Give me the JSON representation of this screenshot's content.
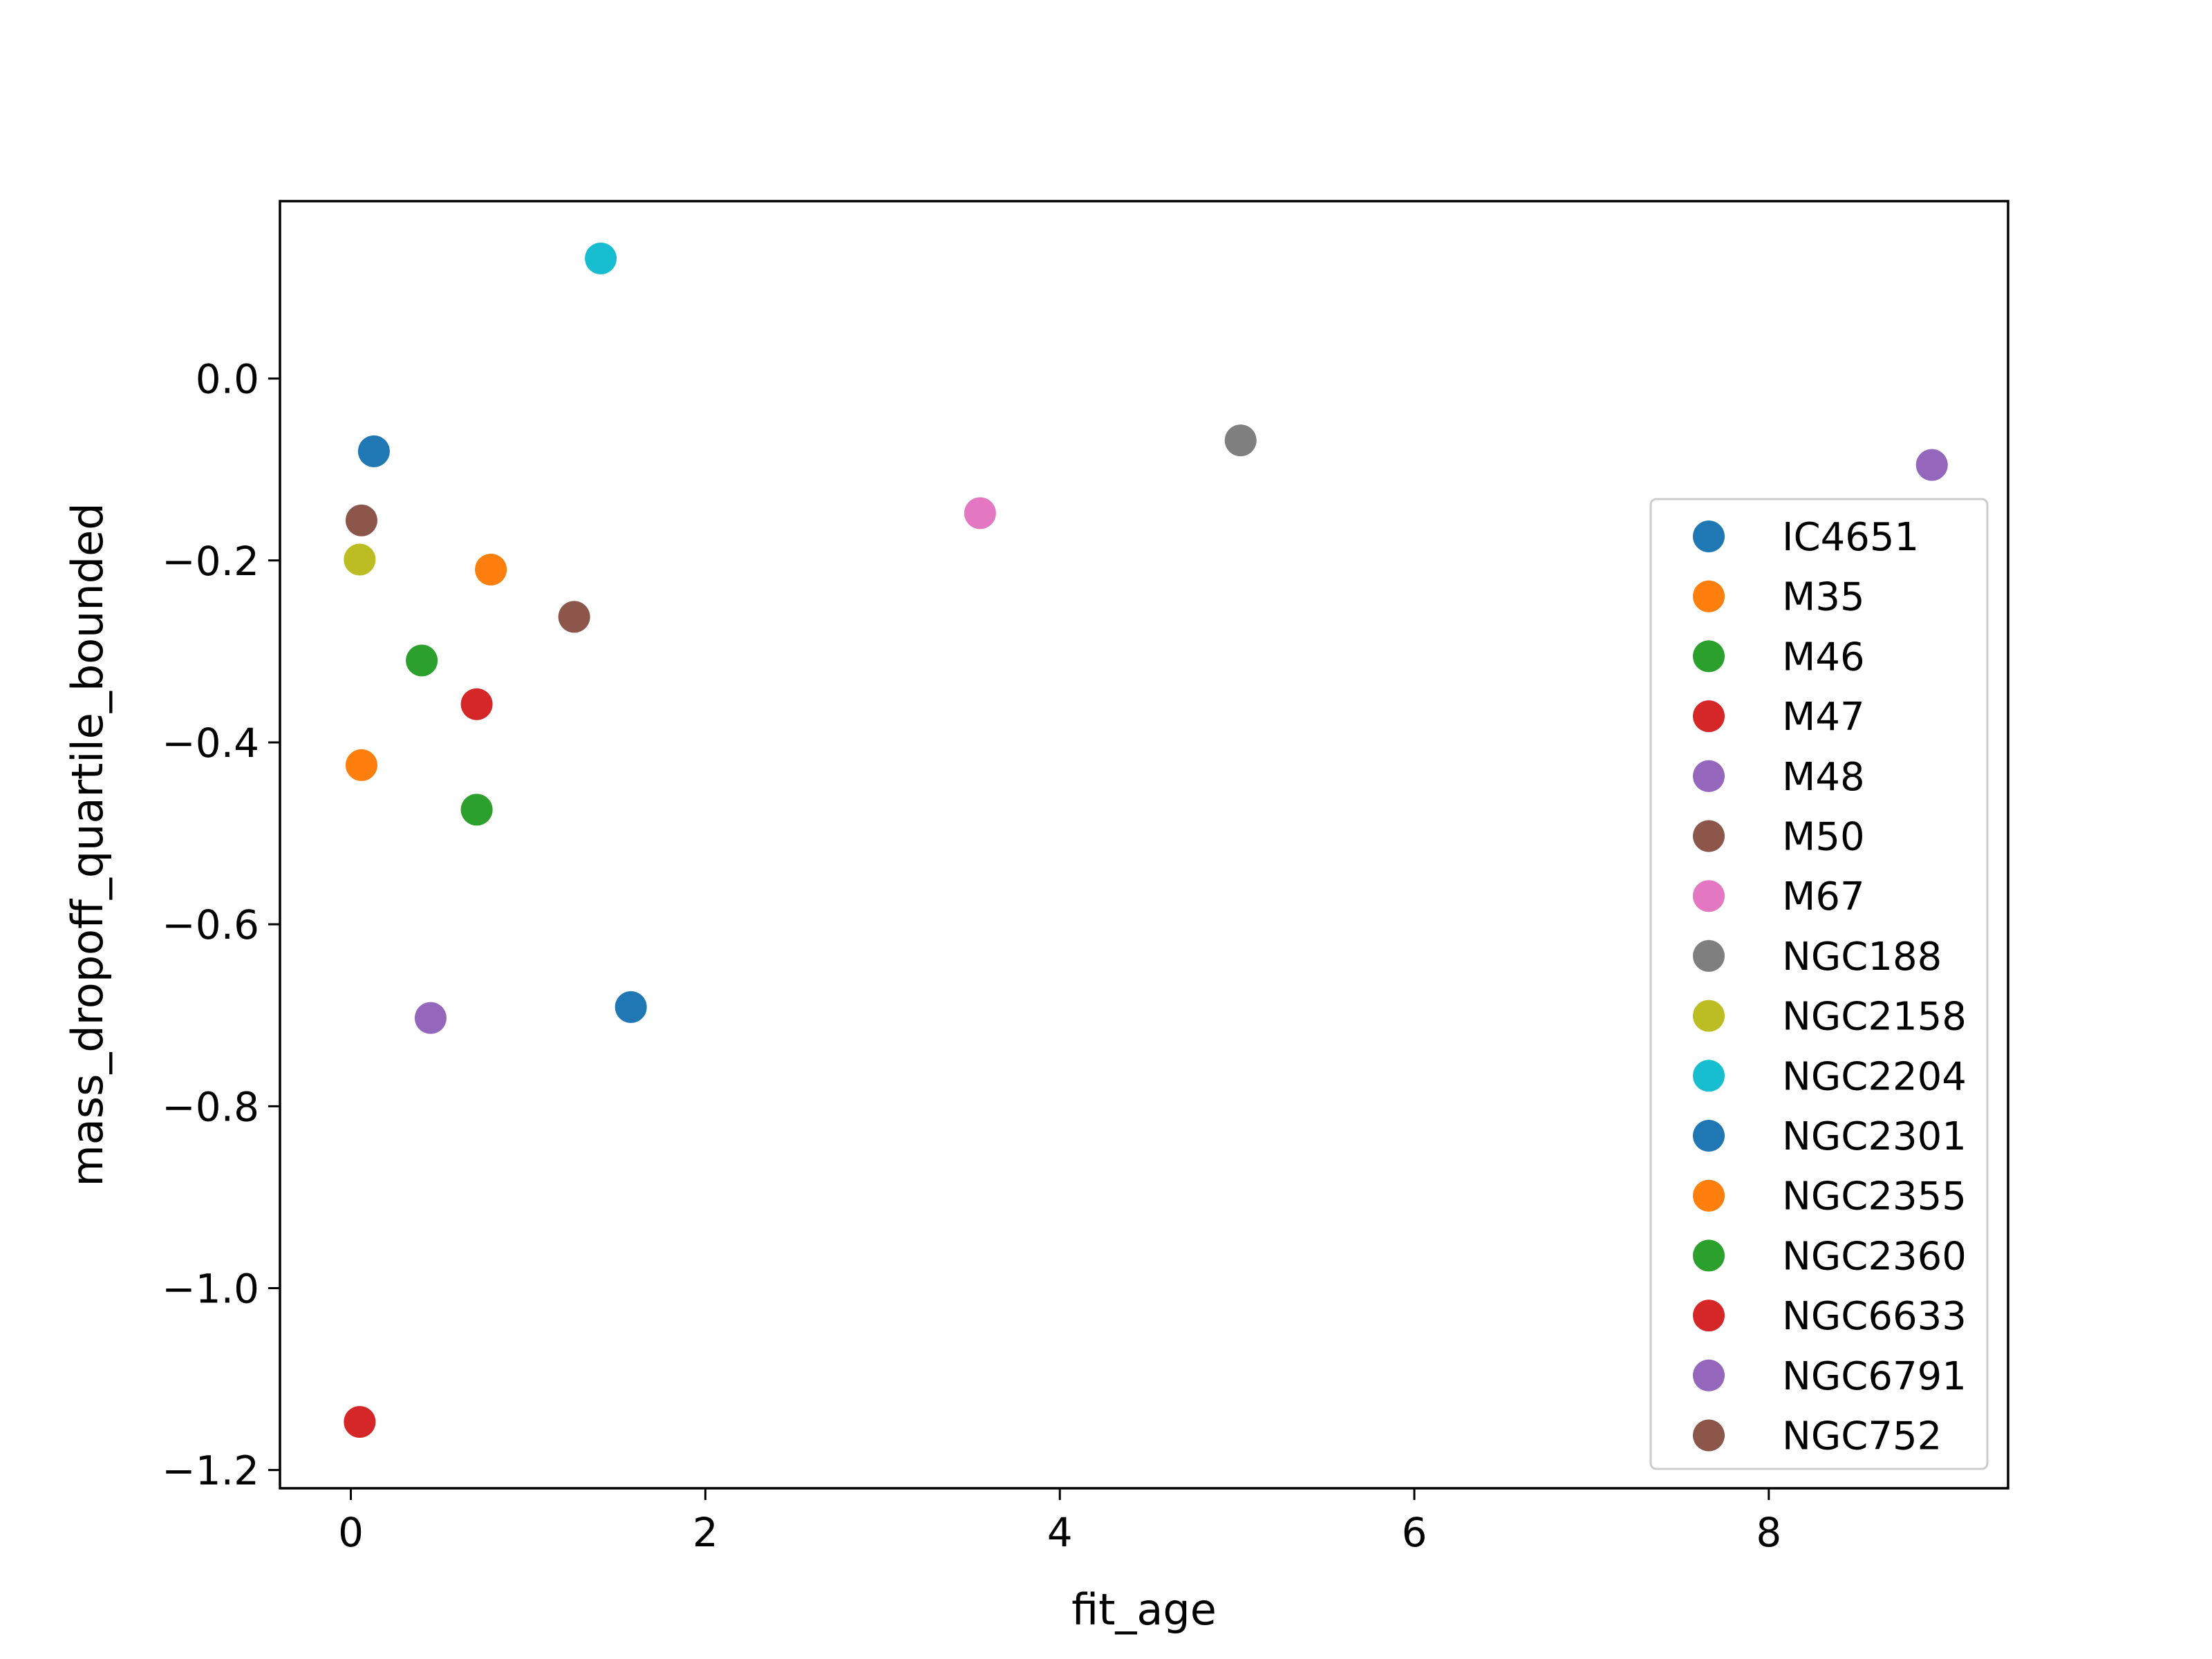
{
  "chart_data": {
    "type": "scatter",
    "title": "",
    "xlabel": "fit_age",
    "ylabel": "mass_dropoff_quartile_bounded",
    "xlim": [
      -0.4,
      9.35
    ],
    "ylim": [
      -1.22,
      0.195
    ],
    "xticks": [
      0,
      2,
      4,
      6,
      8
    ],
    "xtick_labels": [
      "0",
      "2",
      "4",
      "6",
      "8"
    ],
    "yticks": [
      0.0,
      -0.2,
      -0.4,
      -0.6,
      -0.8,
      -1.0,
      -1.2
    ],
    "ytick_labels": [
      "0.0",
      "−0.2",
      "−0.4",
      "−0.6",
      "−0.8",
      "−1.0",
      "−1.2"
    ],
    "grid": false,
    "legend_position": "center-right",
    "series": [
      {
        "name": "IC4651",
        "color": "#1f77b4",
        "points": [
          [
            0.13,
            -0.08
          ]
        ]
      },
      {
        "name": "M35",
        "color": "#ff7f0e",
        "points": [
          [
            0.79,
            -0.21
          ]
        ]
      },
      {
        "name": "M46",
        "color": "#2ca02c",
        "points": [
          [
            0.4,
            -0.31
          ]
        ]
      },
      {
        "name": "M47",
        "color": "#d62728",
        "points": [
          [
            0.71,
            -0.358
          ]
        ]
      },
      {
        "name": "M48",
        "color": "#9467bd",
        "points": [
          [
            0.45,
            -0.703
          ]
        ]
      },
      {
        "name": "M50",
        "color": "#8c564b",
        "points": [
          [
            0.06,
            -0.156
          ]
        ]
      },
      {
        "name": "M67",
        "color": "#e377c2",
        "points": [
          [
            3.55,
            -0.148
          ]
        ]
      },
      {
        "name": "NGC188",
        "color": "#7f7f7f",
        "points": [
          [
            5.02,
            -0.068
          ]
        ]
      },
      {
        "name": "NGC2158",
        "color": "#bcbd22",
        "points": [
          [
            0.05,
            -0.199
          ]
        ]
      },
      {
        "name": "NGC2204",
        "color": "#17becf",
        "points": [
          [
            1.41,
            0.132
          ]
        ]
      },
      {
        "name": "NGC2301",
        "color": "#1f77b4",
        "points": [
          [
            1.58,
            -0.691
          ]
        ]
      },
      {
        "name": "NGC2355",
        "color": "#ff7f0e",
        "points": [
          [
            0.06,
            -0.425
          ]
        ]
      },
      {
        "name": "NGC2360",
        "color": "#2ca02c",
        "points": [
          [
            0.71,
            -0.474
          ]
        ]
      },
      {
        "name": "NGC6633",
        "color": "#d62728",
        "points": [
          [
            0.05,
            -1.147
          ]
        ]
      },
      {
        "name": "NGC6791",
        "color": "#9467bd",
        "points": [
          [
            8.92,
            -0.095
          ]
        ]
      },
      {
        "name": "NGC752",
        "color": "#8c564b",
        "points": [
          [
            1.26,
            -0.262
          ]
        ]
      }
    ]
  }
}
